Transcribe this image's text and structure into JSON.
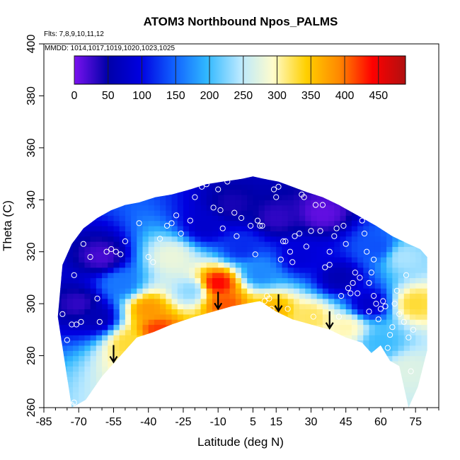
{
  "chart_data": {
    "type": "heatmap",
    "title": "ATOM3 Northbound Npos_PALMS",
    "flights_note": "Flts: 7,8,9,10,11,12",
    "dates_note": "MMDD: 1014,1017,1019,1020,1023,1025",
    "xlabel": "Latitude (deg N)",
    "ylabel": "Theta (C)",
    "xlim": [
      -85,
      85
    ],
    "ylim": [
      260,
      400
    ],
    "x_ticks": [
      -85,
      -70,
      -55,
      -40,
      -25,
      -10,
      5,
      15,
      30,
      45,
      60,
      75
    ],
    "y_ticks": [
      260,
      280,
      300,
      320,
      340,
      360,
      380,
      400
    ],
    "colorbar": {
      "range": [
        0,
        490
      ],
      "ticks": [
        0,
        50,
        100,
        150,
        200,
        250,
        300,
        350,
        400,
        450
      ],
      "colors": [
        "#7a12f0",
        "#0000a8",
        "#0000e0",
        "#1060ff",
        "#30b8ff",
        "#b8e8ff",
        "#fffccc",
        "#ffd000",
        "#ff8800",
        "#ff0000",
        "#b01010"
      ]
    },
    "domain_boundary": {
      "lat": [
        -73,
        -67,
        -60,
        -52,
        -45,
        -38,
        -30,
        -20,
        -12,
        -4,
        2,
        8,
        15,
        22,
        30,
        38,
        45,
        52,
        56,
        60,
        64,
        68,
        72,
        76,
        80,
        80,
        77,
        72,
        65,
        58,
        50,
        42,
        35,
        28,
        22,
        16,
        10,
        5,
        0,
        -8,
        -15,
        -22,
        -30,
        -37,
        -44,
        -50,
        -56,
        -62,
        -68,
        -73,
        -77,
        -79
      ],
      "theta": [
        260,
        263,
        272,
        280,
        287,
        289,
        292,
        295,
        297,
        299,
        300,
        301,
        297,
        294,
        292,
        290,
        287,
        285,
        281,
        284,
        278,
        276,
        260,
        268,
        282,
        318,
        321,
        323,
        326,
        330,
        334,
        338,
        341,
        343,
        345,
        347,
        348,
        349,
        348,
        347,
        346,
        344,
        342,
        341,
        339,
        338,
        336,
        333,
        329,
        323,
        315,
        295
      ]
    },
    "field_features": [
      {
        "lat": -70,
        "theta": 300,
        "value": 30
      },
      {
        "lat": -62,
        "theta": 295,
        "value": 60
      },
      {
        "lat": -60,
        "theta": 318,
        "value": 20
      },
      {
        "lat": -52,
        "theta": 308,
        "value": 160
      },
      {
        "lat": -48,
        "theta": 285,
        "value": 330
      },
      {
        "lat": -40,
        "theta": 298,
        "value": 380
      },
      {
        "lat": -36,
        "theta": 290,
        "value": 420
      },
      {
        "lat": -30,
        "theta": 318,
        "value": 280
      },
      {
        "lat": -22,
        "theta": 305,
        "value": 230
      },
      {
        "lat": -15,
        "theta": 330,
        "value": 80
      },
      {
        "lat": -10,
        "theta": 308,
        "value": 440
      },
      {
        "lat": -7,
        "theta": 300,
        "value": 410
      },
      {
        "lat": -4,
        "theta": 338,
        "value": 40
      },
      {
        "lat": 0,
        "theta": 322,
        "value": 120
      },
      {
        "lat": 8,
        "theta": 312,
        "value": 170
      },
      {
        "lat": 14,
        "theta": 298,
        "value": 360
      },
      {
        "lat": 15,
        "theta": 333,
        "value": 30
      },
      {
        "lat": 25,
        "theta": 318,
        "value": 90
      },
      {
        "lat": 30,
        "theta": 295,
        "value": 320
      },
      {
        "lat": 35,
        "theta": 335,
        "value": 10
      },
      {
        "lat": 42,
        "theta": 310,
        "value": 60
      },
      {
        "lat": 45,
        "theta": 291,
        "value": 300
      },
      {
        "lat": 55,
        "theta": 300,
        "value": 80
      },
      {
        "lat": 58,
        "theta": 322,
        "value": 140
      },
      {
        "lat": 70,
        "theta": 318,
        "value": 240
      },
      {
        "lat": 75,
        "theta": 300,
        "value": 330
      },
      {
        "lat": 72,
        "theta": 275,
        "value": 270
      },
      {
        "lat": 60,
        "theta": 285,
        "value": 200
      }
    ],
    "observations": [
      [
        -77,
        296
      ],
      [
        -75,
        286
      ],
      [
        -73,
        292
      ],
      [
        -71,
        292
      ],
      [
        -69,
        293
      ],
      [
        -72,
        311
      ],
      [
        -73,
        261
      ],
      [
        -72,
        262
      ],
      [
        -68,
        323
      ],
      [
        -65,
        318
      ],
      [
        -62,
        302
      ],
      [
        -61,
        293
      ],
      [
        -58,
        320
      ],
      [
        -56,
        321
      ],
      [
        -54,
        320
      ],
      [
        -52,
        319
      ],
      [
        -50,
        324
      ],
      [
        -44,
        331
      ],
      [
        -40,
        318
      ],
      [
        -38,
        316
      ],
      [
        -35,
        325
      ],
      [
        -32,
        330
      ],
      [
        -30,
        331
      ],
      [
        -28,
        334
      ],
      [
        -26,
        327
      ],
      [
        -22,
        332
      ],
      [
        -20,
        341
      ],
      [
        -17,
        345
      ],
      [
        -15,
        346
      ],
      [
        -14,
        348
      ],
      [
        -12,
        337
      ],
      [
        -10,
        344
      ],
      [
        -9,
        336
      ],
      [
        -8,
        329
      ],
      [
        -6,
        347
      ],
      [
        -3,
        335
      ],
      [
        -2,
        326
      ],
      [
        0,
        333
      ],
      [
        1,
        297
      ],
      [
        3,
        299
      ],
      [
        4,
        330
      ],
      [
        6,
        319
      ],
      [
        7,
        332
      ],
      [
        8,
        330
      ],
      [
        9,
        330
      ],
      [
        10,
        301
      ],
      [
        11,
        303
      ],
      [
        12,
        302
      ],
      [
        13,
        298
      ],
      [
        14,
        344
      ],
      [
        16,
        345
      ],
      [
        15,
        341
      ],
      [
        17,
        317
      ],
      [
        18,
        324
      ],
      [
        19,
        324
      ],
      [
        20,
        298
      ],
      [
        21,
        320
      ],
      [
        22,
        316
      ],
      [
        23,
        326
      ],
      [
        25,
        327
      ],
      [
        26,
        342
      ],
      [
        27,
        341
      ],
      [
        28,
        322
      ],
      [
        30,
        328
      ],
      [
        31,
        295
      ],
      [
        32,
        338
      ],
      [
        34,
        328
      ],
      [
        35,
        338
      ],
      [
        36,
        314
      ],
      [
        38,
        315
      ],
      [
        38,
        320
      ],
      [
        40,
        326
      ],
      [
        41,
        329
      ],
      [
        42,
        295
      ],
      [
        43,
        303
      ],
      [
        44,
        330
      ],
      [
        45,
        323
      ],
      [
        46,
        306
      ],
      [
        47,
        304
      ],
      [
        48,
        308
      ],
      [
        49,
        312
      ],
      [
        50,
        304
      ],
      [
        51,
        310
      ],
      [
        52,
        332
      ],
      [
        53,
        327
      ],
      [
        54,
        320
      ],
      [
        55,
        297
      ],
      [
        55,
        308
      ],
      [
        56,
        312
      ],
      [
        57,
        303
      ],
      [
        57,
        317
      ],
      [
        58,
        300
      ],
      [
        59,
        294
      ],
      [
        60,
        298
      ],
      [
        61,
        301
      ],
      [
        62,
        299
      ],
      [
        63,
        283
      ],
      [
        64,
        288
      ],
      [
        65,
        291
      ],
      [
        66,
        300
      ],
      [
        67,
        305
      ],
      [
        68,
        296
      ],
      [
        70,
        293
      ],
      [
        71,
        311
      ],
      [
        72,
        287
      ],
      [
        73,
        274
      ],
      [
        74,
        290
      ]
    ],
    "arrows_at_lat": [
      -55,
      -10,
      16,
      38
    ]
  }
}
